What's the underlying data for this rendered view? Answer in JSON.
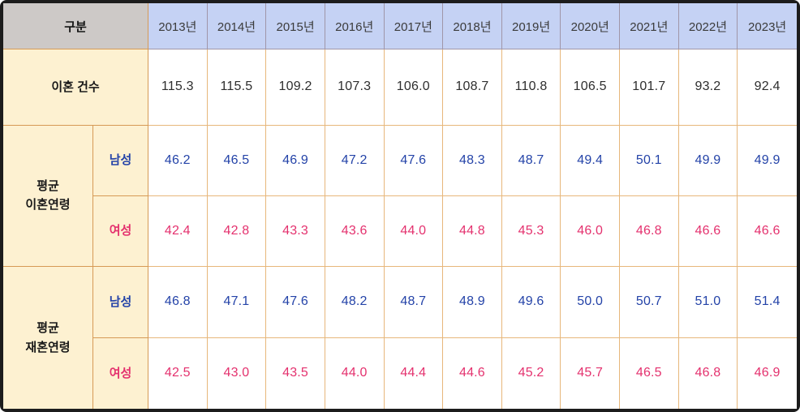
{
  "chart_data": {
    "type": "table",
    "corner_label": "구분",
    "columns": [
      "2013년",
      "2014년",
      "2015년",
      "2016년",
      "2017년",
      "2018년",
      "2019년",
      "2020년",
      "2021년",
      "2022년",
      "2023년"
    ],
    "row_groups": [
      {
        "label": "이혼 건수",
        "values": [
          "115.3",
          "115.5",
          "109.2",
          "107.3",
          "106.0",
          "108.7",
          "110.8",
          "106.5",
          "101.7",
          "93.2",
          "92.4"
        ]
      },
      {
        "label": "평균 이혼연령",
        "label_lines": [
          "평균",
          "이혼연령"
        ],
        "sub_rows": [
          {
            "label": "남성",
            "values": [
              "46.2",
              "46.5",
              "46.9",
              "47.2",
              "47.6",
              "48.3",
              "48.7",
              "49.4",
              "50.1",
              "49.9",
              "49.9"
            ]
          },
          {
            "label": "여성",
            "values": [
              "42.4",
              "42.8",
              "43.3",
              "43.6",
              "44.0",
              "44.8",
              "45.3",
              "46.0",
              "46.8",
              "46.6",
              "46.6"
            ]
          }
        ]
      },
      {
        "label": "평균 재혼연령",
        "label_lines": [
          "평균",
          "재혼연령"
        ],
        "sub_rows": [
          {
            "label": "남성",
            "values": [
              "46.8",
              "47.1",
              "47.6",
              "48.2",
              "48.7",
              "48.9",
              "49.6",
              "50.0",
              "50.7",
              "51.0",
              "51.4"
            ]
          },
          {
            "label": "여성",
            "values": [
              "42.5",
              "43.0",
              "43.5",
              "44.0",
              "44.4",
              "44.6",
              "45.2",
              "45.7",
              "46.5",
              "46.8",
              "46.9"
            ]
          }
        ]
      }
    ]
  },
  "colors": {
    "corner_bg": "#CDC9C7",
    "year_header_bg": "#C5D2F4",
    "label_bg": "#FDF1D1",
    "male_text": "#2443A8",
    "female_text": "#E4316E",
    "header_border": "#A096A8",
    "label_border": "#D69A55",
    "body_border": "#E7B77B",
    "outer_border": "#1C1C1C"
  }
}
